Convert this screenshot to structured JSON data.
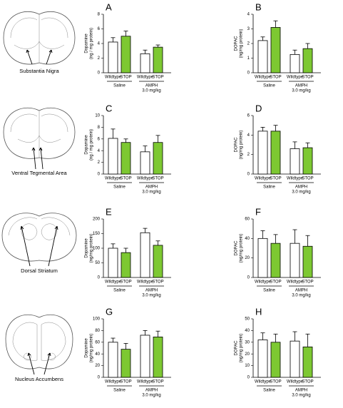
{
  "regions": [
    "Substantia Nigra",
    "Ventral Tegmental Area",
    "Dorsal Striatum",
    "Nucleus Accumbens"
  ],
  "chart_data": [
    {
      "type": "bar",
      "title": "A",
      "ylabel": [
        "Dopamine",
        "(ng / mg protein)"
      ],
      "categories": [
        "Wildtype",
        "STOP",
        "Wildtype",
        "STOP"
      ],
      "groups": [
        {
          "label": "Saline"
        },
        {
          "label": "AMPH",
          "sublabel": "3.0 mg/kg"
        }
      ],
      "values": [
        4.2,
        5.0,
        2.6,
        3.5
      ],
      "errors": [
        0.6,
        0.7,
        0.5,
        0.3
      ],
      "colors": [
        "#ffffff",
        "#7dc832",
        "#ffffff",
        "#7dc832"
      ],
      "ylim": [
        0,
        8
      ],
      "yticks": [
        0,
        2,
        4,
        6,
        8
      ]
    },
    {
      "type": "bar",
      "title": "B",
      "ylabel": [
        "DOPAC",
        "(ng/mg protein)"
      ],
      "categories": [
        "Wildtype",
        "STOP",
        "Wildtype",
        "STOP"
      ],
      "groups": [
        {
          "label": "Saline"
        },
        {
          "label": "AMPH",
          "sublabel": "3.0 mg/kg"
        }
      ],
      "values": [
        2.2,
        3.1,
        1.25,
        1.65
      ],
      "errors": [
        0.25,
        0.45,
        0.3,
        0.35
      ],
      "colors": [
        "#ffffff",
        "#7dc832",
        "#ffffff",
        "#7dc832"
      ],
      "ylim": [
        0,
        4
      ],
      "yticks": [
        0,
        1,
        2,
        3,
        4
      ]
    },
    {
      "type": "bar",
      "title": "C",
      "ylabel": [
        "Dopamine",
        "(ng / mg protein)"
      ],
      "categories": [
        "Wildtype",
        "STOP",
        "Wildtype",
        "STOP"
      ],
      "groups": [
        {
          "label": "Saline"
        },
        {
          "label": "AMPH",
          "sublabel": "3.0 mg/kg"
        }
      ],
      "values": [
        6.1,
        5.4,
        3.8,
        5.4
      ],
      "errors": [
        1.6,
        0.6,
        1.0,
        1.2
      ],
      "colors": [
        "#ffffff",
        "#7dc832",
        "#ffffff",
        "#7dc832"
      ],
      "ylim": [
        0,
        10
      ],
      "yticks": [
        0,
        2,
        4,
        6,
        8,
        10
      ]
    },
    {
      "type": "bar",
      "title": "D",
      "ylabel": [
        "DOPAC",
        "(ng/mg protein)"
      ],
      "categories": [
        "Wildtype",
        "STOP",
        "Wildtype",
        "STOP"
      ],
      "groups": [
        {
          "label": "Saline"
        },
        {
          "label": "AMPH",
          "sublabel": "3.0 mg/kg"
        }
      ],
      "values": [
        4.4,
        4.4,
        2.6,
        2.7
      ],
      "errors": [
        0.4,
        0.6,
        0.7,
        0.5
      ],
      "colors": [
        "#ffffff",
        "#7dc832",
        "#ffffff",
        "#7dc832"
      ],
      "ylim": [
        0,
        6
      ],
      "yticks": [
        0,
        2,
        4,
        6
      ]
    },
    {
      "type": "bar",
      "title": "E",
      "ylabel": [
        "Dopamine",
        "(ng/mg protein)"
      ],
      "categories": [
        "Wildtype",
        "STOP",
        "Wildtype",
        "STOP"
      ],
      "groups": [
        {
          "label": "Saline"
        },
        {
          "label": "AMPH",
          "sublabel": "3.0 mg/kg"
        }
      ],
      "values": [
        100,
        85,
        153,
        110
      ],
      "errors": [
        15,
        15,
        15,
        15
      ],
      "colors": [
        "#ffffff",
        "#7dc832",
        "#ffffff",
        "#7dc832"
      ],
      "ylim": [
        0,
        200
      ],
      "yticks": [
        0,
        50,
        100,
        150,
        200
      ]
    },
    {
      "type": "bar",
      "title": "F",
      "ylabel": [
        "DOPAC",
        "(ng/mg protein)"
      ],
      "categories": [
        "Wildtype",
        "STOP",
        "Wildtype",
        "STOP"
      ],
      "groups": [
        {
          "label": "Saline"
        },
        {
          "label": "AMPH",
          "sublabel": "3.0 mg/kg"
        }
      ],
      "values": [
        40,
        35,
        35,
        32
      ],
      "errors": [
        8,
        9,
        14,
        11
      ],
      "colors": [
        "#ffffff",
        "#7dc832",
        "#ffffff",
        "#7dc832"
      ],
      "ylim": [
        0,
        60
      ],
      "yticks": [
        0,
        20,
        40,
        60
      ]
    },
    {
      "type": "bar",
      "title": "G",
      "ylabel": [
        "Dopamine",
        "(ng/mg protein)"
      ],
      "categories": [
        "Wildtype",
        "STOP",
        "Wildtype",
        "STOP"
      ],
      "groups": [
        {
          "label": "Saline"
        },
        {
          "label": "AMPH",
          "sublabel": "3.0 mg/kg"
        }
      ],
      "values": [
        60,
        48,
        72,
        69
      ],
      "errors": [
        7,
        10,
        8,
        10
      ],
      "colors": [
        "#ffffff",
        "#7dc832",
        "#ffffff",
        "#7dc832"
      ],
      "ylim": [
        0,
        100
      ],
      "yticks": [
        0,
        20,
        40,
        60,
        80,
        100
      ]
    },
    {
      "type": "bar",
      "title": "H",
      "ylabel": [
        "DOPAC",
        "(ng/mg protein)"
      ],
      "categories": [
        "Wildtype",
        "STOP",
        "Wildtype",
        "STOP"
      ],
      "groups": [
        {
          "label": "Saline"
        },
        {
          "label": "AMPH",
          "sublabel": "3.0 mg/kg"
        }
      ],
      "values": [
        32,
        30,
        31,
        26
      ],
      "errors": [
        6,
        7,
        8,
        11
      ],
      "colors": [
        "#ffffff",
        "#7dc832",
        "#ffffff",
        "#7dc832"
      ],
      "ylim": [
        0,
        50
      ],
      "yticks": [
        0,
        10,
        20,
        30,
        40,
        50
      ]
    }
  ]
}
